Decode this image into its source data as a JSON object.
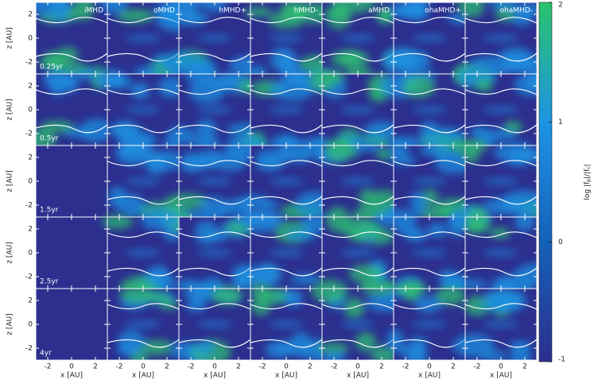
{
  "columns": [
    "iMHD",
    "oMHD",
    "hMHD+",
    "hMHD-",
    "aMHD",
    "ohaMHD+",
    "ohaMHD-"
  ],
  "rows": [
    "0.25yr",
    "0.5yr",
    "1.5yr",
    "2.5yr",
    "4yr"
  ],
  "x_axis": {
    "label": "x [AU]",
    "lim": [
      -3,
      3
    ],
    "ticks": [
      -2,
      0,
      2
    ]
  },
  "z_axis": {
    "label": "z [AU]",
    "lim": [
      -3,
      3
    ],
    "ticks": [
      -2,
      0,
      2
    ]
  },
  "colorbar": {
    "label": [
      "log |f",
      "p",
      "|/|f",
      "c",
      "|"
    ],
    "lim": [
      -1,
      2
    ],
    "ticks": [
      2,
      1,
      0,
      -1
    ]
  }
}
